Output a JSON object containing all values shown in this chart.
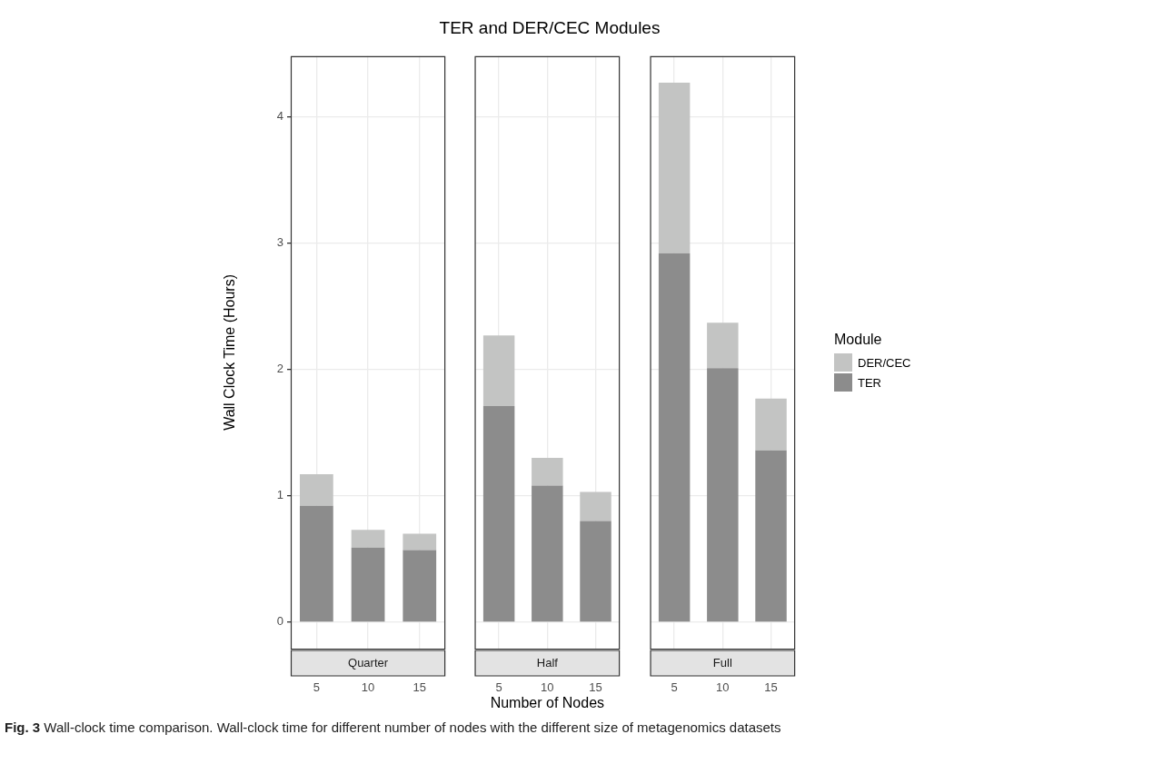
{
  "chart_data": [
    {
      "type": "bar",
      "ylabel": "Wall Clock Time (Hours)",
      "subtitle": "Quarter",
      "categories": [
        "5",
        "10",
        "15"
      ],
      "stacked": true,
      "grid": true,
      "ylim": [
        -0.21,
        4.48
      ],
      "yticks": [
        0,
        1,
        2,
        3,
        4
      ],
      "series": [
        {
          "color": "#8c8c8c",
          "values": [
            0.92,
            0.59,
            0.57
          ]
        },
        {
          "color": "#c3c4c3",
          "values": [
            0.25,
            0.14,
            0.13
          ]
        }
      ],
      "annotations": [
        "Fig. 3 Wall-clock time comparison. Wall-clock time for different number of nodes with the different size of metagenomics datasets"
      ]
    },
    {
      "type": "bar",
      "title": "TER and DER/CEC Modules",
      "xlabel": "Number of Nodes",
      "subtitle": "Half",
      "categories": [
        "5",
        "10",
        "15"
      ],
      "stacked": true,
      "grid": true,
      "ylim": [
        -0.21,
        4.48
      ],
      "yticks": [
        0,
        1,
        2,
        3,
        4
      ],
      "tick_labels": "x",
      "series": [
        {
          "color": "#8c8c8c",
          "values": [
            1.71,
            1.08,
            0.8
          ]
        },
        {
          "color": "#c3c4c3",
          "values": [
            0.56,
            0.22,
            0.23
          ]
        }
      ]
    },
    {
      "type": "bar",
      "subtitle": "Full",
      "categories": [
        "5",
        "10",
        "15"
      ],
      "stacked": true,
      "grid": true,
      "ylim": [
        -0.21,
        4.48
      ],
      "yticks": [
        0,
        1,
        2,
        3,
        4
      ],
      "tick_labels": "x",
      "legend": "right",
      "legend_title": "Module",
      "series": [
        {
          "name": "TER",
          "color": "#8c8c8c",
          "values": [
            2.92,
            2.01,
            1.36
          ]
        },
        {
          "name": "DER/CEC",
          "color": "#c3c4c3",
          "values": [
            1.35,
            0.36,
            0.41
          ]
        }
      ]
    }
  ]
}
